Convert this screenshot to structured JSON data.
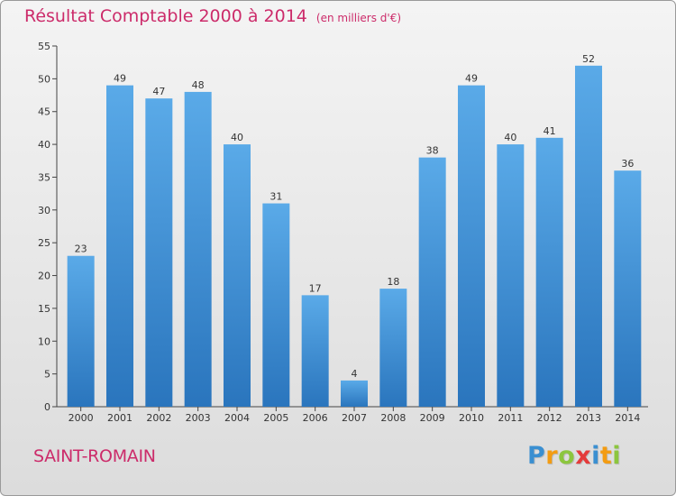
{
  "title": "Résultat Comptable 2000 à 2014",
  "subtitle": "(en milliers d'€)",
  "commune": "SAINT-ROMAIN",
  "logo": {
    "letters": [
      "P",
      "r",
      "o",
      "x",
      "i",
      "t",
      "i"
    ],
    "colors": [
      "#3a8fd1",
      "#f39c12",
      "#8cc63e",
      "#e43b3b",
      "#3a8fd1",
      "#f39c12",
      "#8cc63e"
    ]
  },
  "colors": {
    "title": "#cc2b6a",
    "bar_top": "#5aaae8",
    "bar_bottom": "#2a75bd"
  },
  "chart_data": {
    "type": "bar",
    "categories": [
      "2000",
      "2001",
      "2002",
      "2003",
      "2004",
      "2005",
      "2006",
      "2007",
      "2008",
      "2009",
      "2010",
      "2011",
      "2012",
      "2013",
      "2014"
    ],
    "values": [
      23,
      49,
      47,
      48,
      40,
      31,
      17,
      4,
      18,
      38,
      49,
      40,
      41,
      52,
      36
    ],
    "ylim": [
      0,
      55
    ],
    "yticks": [
      0,
      5,
      10,
      15,
      20,
      25,
      30,
      35,
      40,
      45,
      50,
      55
    ],
    "grid": false
  }
}
